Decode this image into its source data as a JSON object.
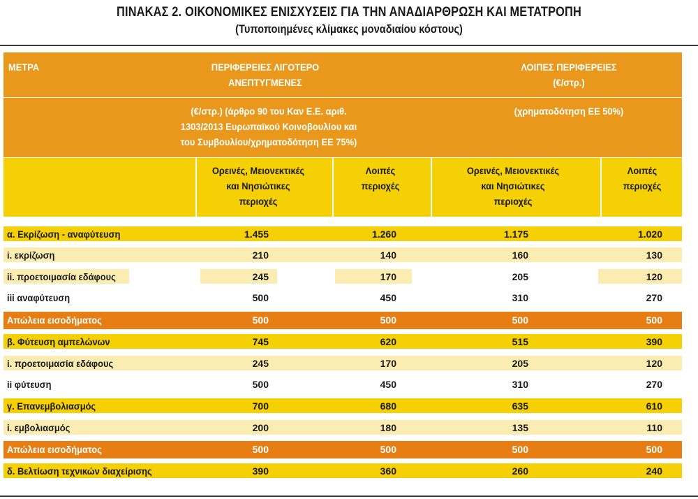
{
  "title": "ΠΙΝΑΚΑΣ 2. ΟΙΚΟΝΟΜΙΚΕΣ ΕΝΙΣΧΥΣΕΙΣ ΓΙΑ ΤΗΝ ΑΝΑΔΙΑΡΘΡΩΣΗ ΚΑΙ ΜΕΤΑΤΡΟΠΗ",
  "subtitle": "(Τυποποιημένες κλίμακες μοναδιαίου κόστους)",
  "header": {
    "col0": "ΜΕΤΡΑ",
    "group1_line1": "ΠΕΡΙΦΕΡΕΙΕΣ ΛΙΓΟΤΕΡΟ",
    "group1_line2": "ΑΝΕΠΤΥΓΜΕΝΕΣ",
    "group2_line1": "ΛΟΙΠΕΣ ΠΕΡΙΦΕΡΕΙΕΣ",
    "group2_line2": "(€/στρ.)",
    "group1_note_line1": "(€/στρ.) (άρθρο 90 του Καν Ε.Ε. αριθ.",
    "group1_note_line2": "1303/2013 Ευρωπαϊκού Κοινοβουλίου και",
    "group1_note_line3": "του Συμβουλίου/χρηματοδότηση ΕΕ 75%)",
    "group2_note": "(χρηματοδότηση ΕΕ 50%)",
    "sub1_line1": "Ορεινές, Μειονεκτικές",
    "sub1_line2": "και Νησιώτικες",
    "sub1_line3": "περιοχές",
    "sub2_line1": "Λοιπές",
    "sub2_line2": "περιοχές",
    "sub3_line1": "Ορεινές, Μειονεκτικές",
    "sub3_line2": "και Νησιώτικες",
    "sub3_line3": "περιοχές",
    "sub4_line1": "Λοιπές",
    "sub4_line2": "περιοχές"
  },
  "rows": [
    {
      "label": "α. Εκρίζωση - αναφύτευση",
      "v": [
        "1.455",
        "1.260",
        "1.175",
        "1.020"
      ]
    },
    {
      "label": "i. εκρίζωση",
      "v": [
        "210",
        "140",
        "160",
        "130"
      ]
    },
    {
      "label": "ii. προετοιμασία εδάφους",
      "v": [
        "245",
        "170",
        "205",
        "120"
      ]
    },
    {
      "label": "iii αναφύτευση",
      "v": [
        "500",
        "450",
        "310",
        "270"
      ]
    },
    {
      "label": "Απώλεια εισοδήματος",
      "v": [
        "500",
        "500",
        "500",
        "500"
      ]
    },
    {
      "label": "β. Φύτευση αμπελώνων",
      "v": [
        "745",
        "620",
        "515",
        "390"
      ]
    },
    {
      "label": "i. προετοιμασία εδάφους",
      "v": [
        "245",
        "170",
        "205",
        "120"
      ]
    },
    {
      "label": "ii φύτευση",
      "v": [
        "500",
        "450",
        "310",
        "270"
      ]
    },
    {
      "label": "γ. Επανεμβολιασμός",
      "v": [
        "700",
        "680",
        "635",
        "610"
      ]
    },
    {
      "label": "i. εμβολιασμός",
      "v": [
        "200",
        "180",
        "135",
        "110"
      ]
    },
    {
      "label": "Απώλεια εισοδήματος",
      "v": [
        "500",
        "500",
        "500",
        "500"
      ]
    },
    {
      "label": "δ. Βελτίωση τεχνικών διαχείρισης",
      "v": [
        "390",
        "360",
        "260",
        "240"
      ]
    }
  ]
}
